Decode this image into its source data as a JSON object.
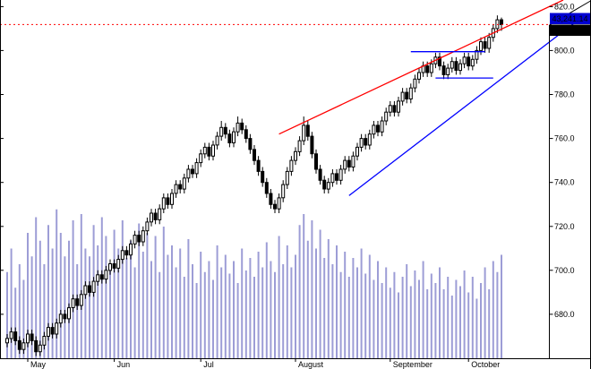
{
  "chart_data": {
    "type": "candlestick",
    "title": "",
    "xlabel": "",
    "ylabel": "",
    "ylim": [
      660,
      823
    ],
    "grid": false,
    "legend": false,
    "y_ticks": [
      {
        "label": "820.0",
        "value": 820
      },
      {
        "label": "800.0",
        "value": 800
      },
      {
        "label": "780.0",
        "value": 780
      },
      {
        "label": "760.0",
        "value": 760
      },
      {
        "label": "740.0",
        "value": 740
      },
      {
        "label": "720.0",
        "value": 720
      },
      {
        "label": "700.0",
        "value": 700
      },
      {
        "label": "680.0",
        "value": 680
      }
    ],
    "months": [
      {
        "label": "May",
        "i": 5
      },
      {
        "label": "Jun",
        "i": 26
      },
      {
        "label": "Jul",
        "i": 47
      },
      {
        "label": "August",
        "i": 70
      },
      {
        "label": "September",
        "i": 93
      },
      {
        "label": "October",
        "i": 112
      }
    ],
    "candles": [
      [
        667,
        671,
        665,
        669
      ],
      [
        669,
        674,
        667,
        672
      ],
      [
        672,
        674,
        666,
        668
      ],
      [
        668,
        670,
        662,
        664
      ],
      [
        664,
        669,
        662,
        667
      ],
      [
        667,
        673,
        665,
        671
      ],
      [
        671,
        673,
        666,
        668
      ],
      [
        668,
        670,
        661,
        663
      ],
      [
        663,
        668,
        661,
        666
      ],
      [
        666,
        672,
        664,
        670
      ],
      [
        670,
        676,
        668,
        674
      ],
      [
        674,
        676,
        669,
        671
      ],
      [
        671,
        678,
        669,
        676
      ],
      [
        676,
        682,
        674,
        680
      ],
      [
        680,
        682,
        676,
        678
      ],
      [
        678,
        685,
        676,
        683
      ],
      [
        683,
        689,
        681,
        687
      ],
      [
        687,
        689,
        682,
        684
      ],
      [
        684,
        691,
        682,
        689
      ],
      [
        689,
        695,
        687,
        693
      ],
      [
        693,
        695,
        688,
        690
      ],
      [
        690,
        697,
        688,
        695
      ],
      [
        695,
        700,
        693,
        698
      ],
      [
        698,
        700,
        694,
        696
      ],
      [
        696,
        702,
        694,
        700
      ],
      [
        700,
        705,
        698,
        703
      ],
      [
        703,
        705,
        699,
        701
      ],
      [
        701,
        707,
        699,
        705
      ],
      [
        705,
        711,
        703,
        709
      ],
      [
        709,
        711,
        705,
        707
      ],
      [
        707,
        714,
        705,
        712
      ],
      [
        712,
        718,
        710,
        716
      ],
      [
        716,
        718,
        711,
        713
      ],
      [
        713,
        720,
        711,
        718
      ],
      [
        718,
        724,
        716,
        722
      ],
      [
        722,
        728,
        720,
        726
      ],
      [
        726,
        728,
        721,
        723
      ],
      [
        723,
        730,
        721,
        728
      ],
      [
        728,
        735,
        726,
        733
      ],
      [
        733,
        735,
        728,
        730
      ],
      [
        730,
        737,
        728,
        735
      ],
      [
        735,
        741,
        733,
        739
      ],
      [
        739,
        741,
        735,
        737
      ],
      [
        737,
        744,
        735,
        742
      ],
      [
        742,
        748,
        740,
        746
      ],
      [
        746,
        748,
        742,
        744
      ],
      [
        744,
        751,
        742,
        749
      ],
      [
        749,
        755,
        747,
        753
      ],
      [
        753,
        758,
        751,
        756
      ],
      [
        756,
        758,
        750,
        752
      ],
      [
        752,
        759,
        750,
        757
      ],
      [
        757,
        763,
        755,
        761
      ],
      [
        761,
        768,
        759,
        765
      ],
      [
        765,
        767,
        760,
        762
      ],
      [
        762,
        764,
        756,
        758
      ],
      [
        758,
        765,
        756,
        763
      ],
      [
        763,
        770,
        761,
        767
      ],
      [
        767,
        769,
        762,
        764
      ],
      [
        764,
        766,
        758,
        760
      ],
      [
        760,
        762,
        753,
        755
      ],
      [
        755,
        757,
        748,
        750
      ],
      [
        750,
        752,
        743,
        745
      ],
      [
        745,
        747,
        738,
        740
      ],
      [
        740,
        742,
        733,
        735
      ],
      [
        735,
        737,
        728,
        730
      ],
      [
        730,
        732,
        726,
        728
      ],
      [
        728,
        735,
        726,
        733
      ],
      [
        733,
        741,
        731,
        739
      ],
      [
        739,
        747,
        737,
        745
      ],
      [
        745,
        752,
        743,
        750
      ],
      [
        750,
        756,
        748,
        754
      ],
      [
        754,
        761,
        752,
        759
      ],
      [
        759,
        770,
        757,
        766
      ],
      [
        766,
        768,
        759,
        761
      ],
      [
        761,
        763,
        751,
        753
      ],
      [
        753,
        755,
        744,
        746
      ],
      [
        746,
        748,
        739,
        741
      ],
      [
        741,
        743,
        735,
        737
      ],
      [
        737,
        742,
        735,
        740
      ],
      [
        740,
        746,
        738,
        744
      ],
      [
        744,
        746,
        739,
        741
      ],
      [
        741,
        748,
        739,
        746
      ],
      [
        746,
        752,
        744,
        750
      ],
      [
        750,
        752,
        745,
        747
      ],
      [
        747,
        754,
        745,
        752
      ],
      [
        752,
        758,
        750,
        756
      ],
      [
        756,
        762,
        754,
        760
      ],
      [
        760,
        762,
        755,
        757
      ],
      [
        757,
        764,
        755,
        762
      ],
      [
        762,
        768,
        760,
        766
      ],
      [
        766,
        768,
        761,
        763
      ],
      [
        763,
        770,
        761,
        768
      ],
      [
        768,
        774,
        766,
        772
      ],
      [
        772,
        777,
        770,
        775
      ],
      [
        775,
        777,
        770,
        772
      ],
      [
        772,
        779,
        770,
        777
      ],
      [
        777,
        783,
        775,
        781
      ],
      [
        781,
        783,
        776,
        778
      ],
      [
        778,
        785,
        776,
        783
      ],
      [
        783,
        789,
        781,
        787
      ],
      [
        787,
        792,
        785,
        790
      ],
      [
        790,
        795,
        788,
        793
      ],
      [
        793,
        795,
        788,
        790
      ],
      [
        790,
        796,
        788,
        794
      ],
      [
        794,
        799,
        792,
        797
      ],
      [
        797,
        799,
        791,
        793
      ],
      [
        793,
        795,
        787,
        789
      ],
      [
        789,
        794,
        787,
        792
      ],
      [
        792,
        797,
        790,
        795
      ],
      [
        795,
        797,
        789,
        791
      ],
      [
        791,
        796,
        789,
        794
      ],
      [
        794,
        799,
        792,
        797
      ],
      [
        797,
        799,
        791,
        793
      ],
      [
        793,
        798,
        791,
        796
      ],
      [
        796,
        802,
        794,
        800
      ],
      [
        800,
        806,
        798,
        804
      ],
      [
        804,
        806,
        799,
        801
      ],
      [
        801,
        808,
        799,
        806
      ],
      [
        806,
        812,
        804,
        810
      ],
      [
        810,
        816,
        808,
        814
      ],
      [
        814,
        815,
        809,
        811.85
      ]
    ],
    "volumes": [
      55,
      70,
      45,
      60,
      50,
      80,
      65,
      90,
      75,
      60,
      85,
      70,
      95,
      80,
      65,
      75,
      88,
      60,
      92,
      70,
      65,
      85,
      72,
      90,
      78,
      60,
      82,
      70,
      88,
      64,
      75,
      58,
      86,
      68,
      80,
      62,
      78,
      55,
      84,
      66,
      72,
      58,
      70,
      52,
      76,
      60,
      48,
      68,
      55,
      62,
      50,
      72,
      58,
      66,
      54,
      62,
      48,
      70,
      56,
      64,
      52,
      68,
      58,
      74,
      62,
      55,
      78,
      60,
      72,
      58,
      66,
      85,
      92,
      75,
      88,
      70,
      82,
      64,
      76,
      60,
      72,
      55,
      68,
      52,
      64,
      58,
      70,
      54,
      66,
      50,
      62,
      48,
      58,
      45,
      55,
      42,
      52,
      60,
      46,
      56,
      50,
      62,
      44,
      54,
      48,
      58,
      44,
      52,
      40,
      50,
      46,
      56,
      42,
      52,
      38,
      48,
      58,
      44,
      62,
      55,
      66
    ],
    "overlays": {
      "last_price_line": {
        "price": 811.85,
        "style": "dotted-red"
      },
      "resistance_trendline": {
        "color": "red",
        "from": {
          "i": 66,
          "price": 762
        },
        "to": {
          "i": 135,
          "price": 823
        }
      },
      "support_trendline": {
        "color": "blue",
        "from": {
          "i": 83,
          "price": 734
        },
        "to": {
          "i": 138,
          "price": 813
        }
      },
      "range_high_line": {
        "color": "blue",
        "price": 799.5,
        "from_i": 98,
        "to_i": 116
      },
      "range_low_line": {
        "color": "blue",
        "price": 787.5,
        "from_i": 104,
        "to_i": 118
      }
    },
    "quote": {
      "value_badge": "43,241.14",
      "price_badge": "811.85",
      "top_axis_label": "820.0"
    },
    "colors": {
      "up": "#ffffff",
      "down": "#000000",
      "volume": "#9d9dd6",
      "red": "#ff0000",
      "blue": "#0000ff",
      "badge_blue": "#0000d2",
      "badge_black": "#000000",
      "axis": "#000000",
      "background": "#ffffff"
    }
  }
}
